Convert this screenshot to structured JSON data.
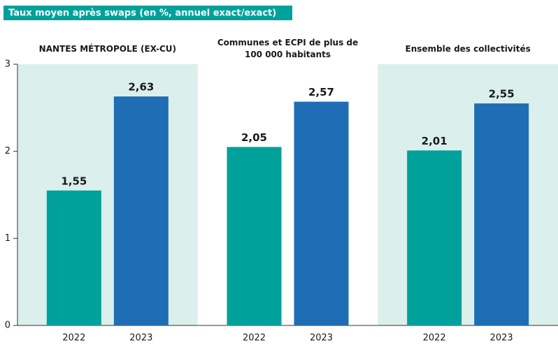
{
  "chart_data": {
    "type": "bar",
    "title": "Taux moyen après swaps (en %, annuel exact/exact)",
    "categories": [
      "NANTES MÉTROPOLE (EX-CU)",
      "Communes et ECPI de plus de 100 000 habitants",
      "Ensemble des collectivités"
    ],
    "series": [
      {
        "name": "2022",
        "color": "#00a19a",
        "values": [
          1.55,
          2.05,
          2.01
        ],
        "value_labels": [
          "1,55",
          "2,05",
          "2,01"
        ]
      },
      {
        "name": "2023",
        "color": "#1f6db5",
        "values": [
          2.63,
          2.57,
          2.55
        ],
        "value_labels": [
          "2,63",
          "2,57",
          "2,55"
        ]
      }
    ],
    "ylim": [
      0,
      3
    ],
    "yticks": [
      0,
      1,
      2,
      3
    ]
  }
}
